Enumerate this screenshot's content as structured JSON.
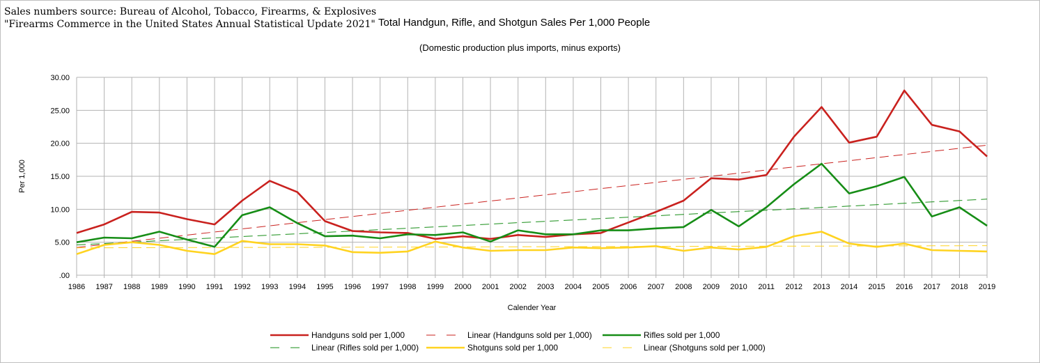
{
  "header": {
    "source_line1": "Sales numbers source: Bureau of Alcohol, Tobacco, Firearms, & Explosives",
    "source_line2": " \"Firearms Commerce in the United States Annual Statistical Update 2021\"",
    "title": "Total Handgun, Rifle, and Shotgun Sales Per 1,000 People",
    "subtitle": "(Domestic production plus imports, minus exports)"
  },
  "chart_data": {
    "type": "line",
    "title": "Total Handgun, Rifle, and Shotgun Sales Per 1,000 People",
    "subtitle": "(Domestic production plus imports, minus exports)",
    "xlabel": "Calender Year",
    "ylabel": "Per 1,000",
    "ylim": [
      0,
      30
    ],
    "yticks": [
      ".00",
      "5.00",
      "10.00",
      "15.00",
      "20.00",
      "25.00",
      "30.00"
    ],
    "grid": true,
    "legend_position": "bottom",
    "x": [
      "1986",
      "1987",
      "1988",
      "1989",
      "1990",
      "1991",
      "1992",
      "1993",
      "1994",
      "1995",
      "1996",
      "1997",
      "1998",
      "1999",
      "2000",
      "2001",
      "2002",
      "2003",
      "2004",
      "2005",
      "2006",
      "2007",
      "2008",
      "2009",
      "2010",
      "2011",
      "2012",
      "2013",
      "2014",
      "2015",
      "2016",
      "2017",
      "2018",
      "2019"
    ],
    "series": [
      {
        "name": "Handguns sold per 1,000",
        "color": "#c9211e",
        "style": "solid",
        "values": [
          6.4,
          7.7,
          9.6,
          9.5,
          8.5,
          7.7,
          11.3,
          14.3,
          12.6,
          8.2,
          6.7,
          6.5,
          6.4,
          5.5,
          5.9,
          5.5,
          6.1,
          5.8,
          6.2,
          6.4,
          8.0,
          9.6,
          11.3,
          14.7,
          14.5,
          15.2,
          21.0,
          25.5,
          20.1,
          21.0,
          28.0,
          22.8,
          21.8,
          18.0
        ]
      },
      {
        "name": "Linear (Handguns sold per 1,000)",
        "color": "#c9211e",
        "style": "dashed",
        "values": [
          4.2,
          4.67,
          5.14,
          5.61,
          6.08,
          6.55,
          7.02,
          7.49,
          7.96,
          8.43,
          8.9,
          9.37,
          9.84,
          10.31,
          10.78,
          11.25,
          11.72,
          12.19,
          12.66,
          13.13,
          13.6,
          14.07,
          14.54,
          15.01,
          15.48,
          15.95,
          16.42,
          16.89,
          17.36,
          17.83,
          18.3,
          18.77,
          19.24,
          19.71
        ]
      },
      {
        "name": "Rifles sold per 1,000",
        "color": "#168d16",
        "style": "solid",
        "values": [
          5.0,
          5.7,
          5.6,
          6.6,
          5.4,
          4.3,
          9.1,
          10.3,
          7.9,
          5.9,
          6.0,
          5.6,
          6.2,
          6.1,
          6.5,
          5.1,
          6.8,
          6.2,
          6.2,
          6.8,
          6.8,
          7.1,
          7.3,
          9.9,
          7.4,
          10.3,
          13.8,
          16.9,
          12.4,
          13.5,
          14.9,
          8.9,
          10.3,
          7.5
        ]
      },
      {
        "name": "Linear (Rifles sold per 1,000)",
        "color": "#168d16",
        "style": "dashed",
        "values": [
          4.6,
          4.81,
          5.02,
          5.23,
          5.44,
          5.65,
          5.86,
          6.07,
          6.28,
          6.49,
          6.7,
          6.91,
          7.12,
          7.33,
          7.54,
          7.75,
          7.96,
          8.17,
          8.38,
          8.59,
          8.8,
          9.01,
          9.22,
          9.43,
          9.64,
          9.85,
          10.06,
          10.27,
          10.48,
          10.69,
          10.9,
          11.11,
          11.32,
          11.53
        ]
      },
      {
        "name": "Shotguns sold per 1,000",
        "color": "#ffd320",
        "style": "solid",
        "values": [
          3.2,
          4.6,
          5.0,
          4.6,
          3.7,
          3.2,
          5.2,
          4.7,
          4.7,
          4.5,
          3.5,
          3.4,
          3.6,
          5.1,
          4.2,
          3.7,
          3.8,
          3.8,
          4.2,
          4.1,
          4.2,
          4.4,
          3.7,
          4.2,
          3.9,
          4.3,
          5.9,
          6.6,
          4.8,
          4.3,
          4.8,
          3.8,
          3.7,
          3.6
        ]
      },
      {
        "name": "Linear (Shotguns sold per 1,000)",
        "color": "#ffd320",
        "style": "dashed",
        "values": [
          4.15,
          4.16,
          4.17,
          4.18,
          4.19,
          4.2,
          4.21,
          4.22,
          4.23,
          4.24,
          4.25,
          4.26,
          4.27,
          4.28,
          4.29,
          4.3,
          4.31,
          4.32,
          4.33,
          4.34,
          4.35,
          4.36,
          4.37,
          4.38,
          4.39,
          4.4,
          4.41,
          4.42,
          4.43,
          4.44,
          4.45,
          4.46,
          4.47,
          4.48
        ]
      }
    ]
  }
}
